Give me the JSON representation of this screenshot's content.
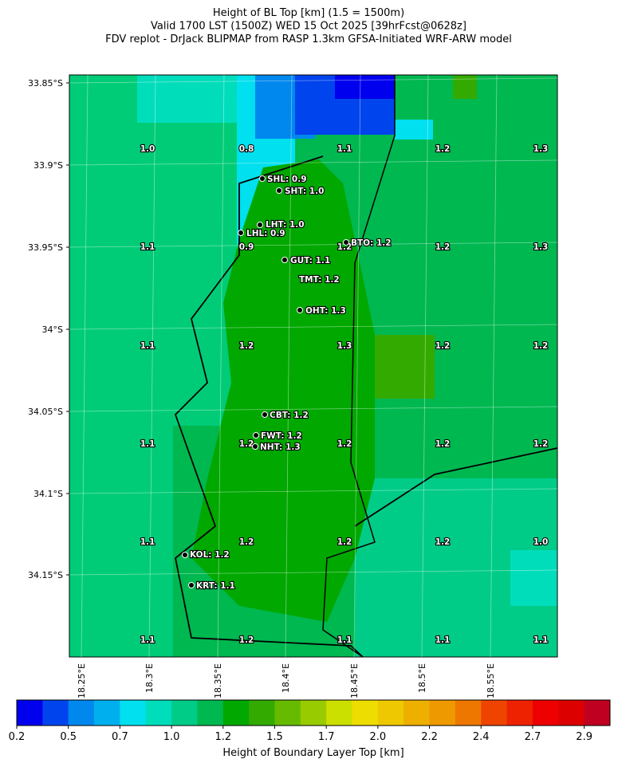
{
  "title": [
    "Height of BL Top [km] (1.5 = 1500m)",
    "Valid 1700 LST (1500Z) WED 15 Oct 2025 [39hrFcst@0628z]",
    "FDV replot - DrJack BLIPMAP from RASP 1.3km GFSA-Initiated WRF-ARW model"
  ],
  "lat_labels": [
    "33.85°S",
    "33.9°S",
    "33.95°S",
    "34°S",
    "34.05°S",
    "34.1°S",
    "34.15°S"
  ],
  "lon_labels": [
    "18.25°E",
    "18.3°E",
    "18.35°E",
    "18.4°E",
    "18.45°E",
    "18.5°E",
    "18.55°E"
  ],
  "grid_values": [
    [
      "1.0",
      "0.8",
      "1.1",
      "1.2",
      "1.3"
    ],
    [
      "1.1",
      "0.9",
      "1.2",
      "1.2",
      "1.3"
    ],
    [
      "1.1",
      "1.2",
      "1.3",
      "1.2",
      "1.2"
    ],
    [
      "1.1",
      "1.2",
      "1.2",
      "1.2",
      "1.2"
    ],
    [
      "1.1",
      "1.2",
      "1.2",
      "1.2",
      "1.0"
    ],
    [
      "1.1",
      "1.2",
      "1.1",
      "1.1",
      "1.1"
    ]
  ],
  "stations": [
    "SHL: 0.9",
    "SHT: 1.0",
    "LHT: 1.0",
    "LHL: 0.9",
    "BTO: 1.2",
    "GUT: 1.1",
    "TMT: 1.2",
    "OHT: 1.3",
    "CBT: 1.2",
    "FWT: 1.2",
    "NHT: 1.3",
    "KOL: 1.2",
    "KRT: 1.1"
  ],
  "colorbar": {
    "label": "Height of Boundary Layer Top [km]",
    "colors": [
      "#0000ee",
      "#0044ee",
      "#0088ee",
      "#00b0ee",
      "#00e0ee",
      "#00ddbb",
      "#00cc88",
      "#00b850",
      "#00a800",
      "#33aa00",
      "#66bb00",
      "#99cc00",
      "#cce000",
      "#eedd00",
      "#eec800",
      "#eeb000",
      "#ee9900",
      "#ee7700",
      "#ee4400",
      "#ee2200",
      "#ee0000",
      "#dd0000",
      "#c00020"
    ],
    "ticks": [
      0.2,
      0.5,
      0.7,
      {
        "value": 1,
        "label": "1.0"
      },
      1.2,
      1.5,
      1.7,
      {
        "value": 2,
        "label": "2.0"
      },
      2.2,
      2.4,
      2.7,
      2.9
    ]
  }
}
